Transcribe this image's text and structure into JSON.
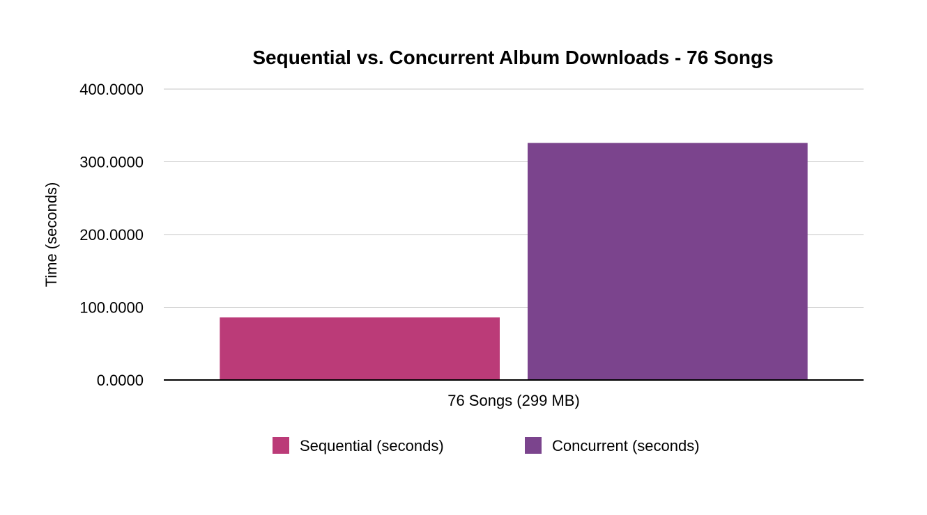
{
  "chart_data": {
    "type": "bar",
    "title": "Sequential vs. Concurrent Album Downloads - 76 Songs",
    "xlabel": "",
    "ylabel": "Time (seconds)",
    "categories": [
      "76 Songs (299 MB)"
    ],
    "ylim": [
      0,
      400
    ],
    "yticks": [
      0,
      100,
      200,
      300,
      400
    ],
    "ytick_labels": [
      "0.0000",
      "100.0000",
      "200.0000",
      "300.0000",
      "400.0000"
    ],
    "grid": true,
    "legend_position": "bottom",
    "series": [
      {
        "name": "Sequential (seconds)",
        "values": [
          86
        ],
        "color": "#bb3b78"
      },
      {
        "name": "Concurrent (seconds)",
        "values": [
          326
        ],
        "color": "#7b448d"
      }
    ]
  }
}
